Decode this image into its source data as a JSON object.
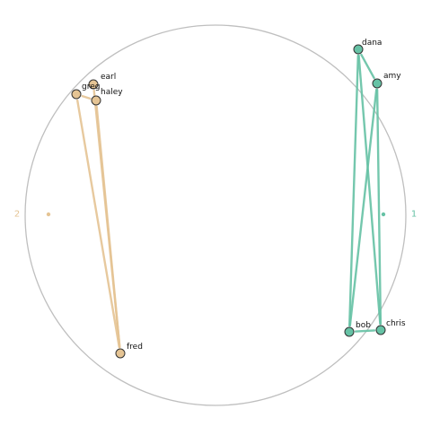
{
  "diagram": {
    "colors": {
      "group1": "#66c2a5",
      "group2": "#e5c494",
      "circle": "#bfbfbf",
      "node_stroke": "#333333"
    },
    "groups": [
      {
        "id": "1",
        "label": "1",
        "color_key": "group1"
      },
      {
        "id": "2",
        "label": "2",
        "color_key": "group2"
      }
    ],
    "nodes": [
      {
        "id": "dana",
        "label": "dana",
        "group": "1"
      },
      {
        "id": "amy",
        "label": "amy",
        "group": "1"
      },
      {
        "id": "bob",
        "label": "bob",
        "group": "1"
      },
      {
        "id": "chris",
        "label": "chris",
        "group": "1"
      },
      {
        "id": "earl",
        "label": "earl",
        "group": "2"
      },
      {
        "id": "greg",
        "label": "greg",
        "group": "2"
      },
      {
        "id": "haley",
        "label": "haley",
        "group": "2"
      },
      {
        "id": "fred",
        "label": "fred",
        "group": "2"
      }
    ],
    "edges": [
      {
        "source": "dana",
        "target": "amy"
      },
      {
        "source": "dana",
        "target": "bob"
      },
      {
        "source": "dana",
        "target": "chris"
      },
      {
        "source": "amy",
        "target": "bob"
      },
      {
        "source": "amy",
        "target": "chris"
      },
      {
        "source": "bob",
        "target": "chris"
      },
      {
        "source": "earl",
        "target": "fred"
      },
      {
        "source": "greg",
        "target": "fred"
      },
      {
        "source": "haley",
        "target": "fred"
      },
      {
        "source": "greg",
        "target": "haley"
      }
    ]
  }
}
